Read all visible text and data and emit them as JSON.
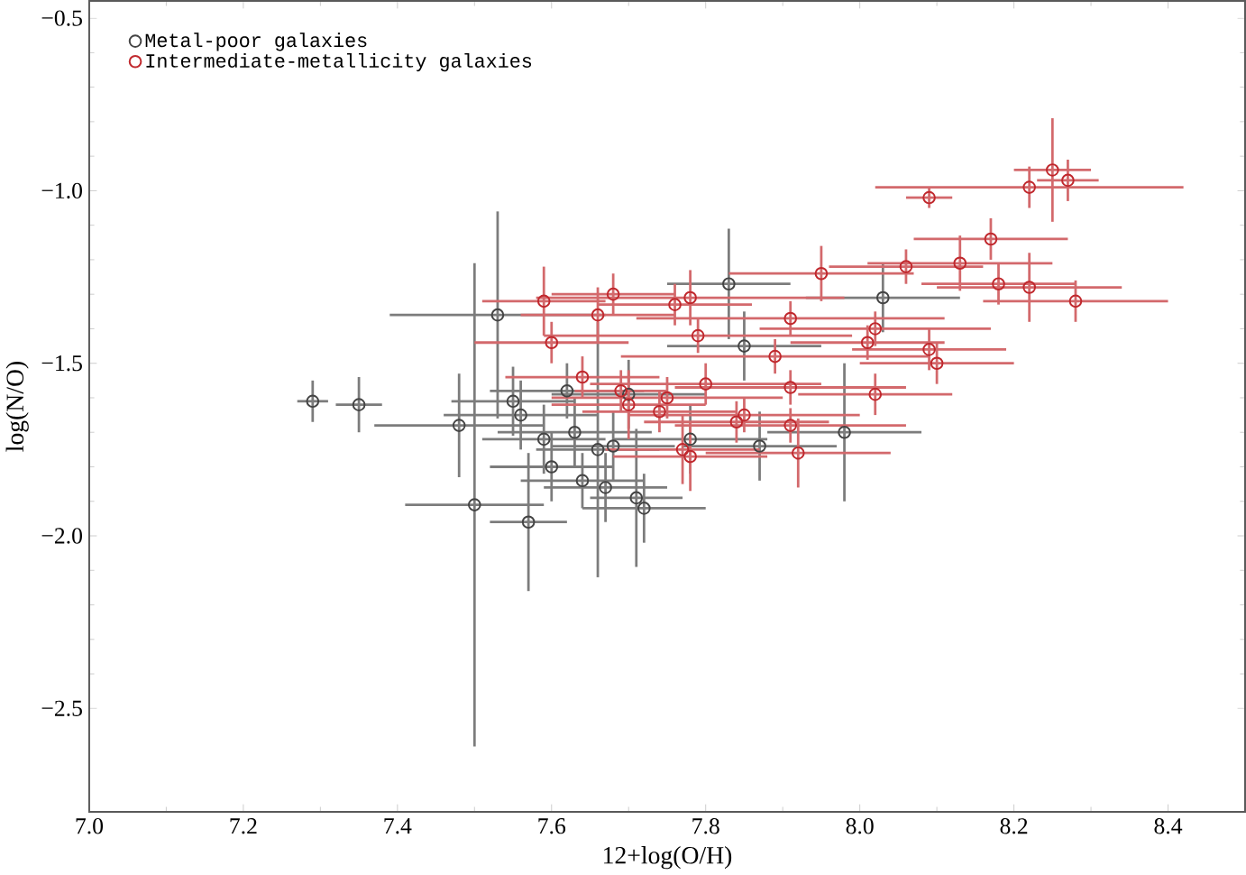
{
  "chart_data": {
    "type": "scatter",
    "xlabel": "12+log(O/H)",
    "ylabel": "log(N/O)",
    "xlim": [
      7.0,
      8.5
    ],
    "ylim": [
      -2.8,
      -0.45
    ],
    "xticks": [
      {
        "value": 7.0,
        "label": "7.0"
      },
      7.2,
      7.4,
      7.6,
      7.8,
      {
        "value": 8.0,
        "label": "8.0"
      },
      8.2,
      8.4
    ],
    "yticks": [
      {
        "value": -2.5,
        "label": "−2.5"
      },
      {
        "value": -2.0,
        "label": "−2.0"
      },
      {
        "value": -1.5,
        "label": "−1.5"
      },
      {
        "value": -1.0,
        "label": "−1.0"
      },
      {
        "value": -0.5,
        "label": "−0.5"
      }
    ],
    "marker": "circle",
    "legend": "top left",
    "grid": false,
    "series": [
      {
        "name": "Metal-poor galaxies",
        "color": "#444444",
        "x": [
          7.29,
          7.35,
          7.48,
          7.5,
          7.53,
          7.55,
          7.57,
          7.59,
          7.6,
          7.64,
          7.66,
          7.67,
          7.71,
          7.68,
          7.56,
          7.62,
          7.63,
          7.83,
          8.03,
          7.98,
          7.87,
          7.78,
          7.72,
          7.85,
          7.7
        ],
        "values": [
          -1.61,
          -1.62,
          -1.68,
          -1.91,
          -1.36,
          -1.61,
          -1.96,
          -1.72,
          -1.8,
          -1.84,
          -1.75,
          -1.86,
          -1.89,
          -1.74,
          -1.65,
          -1.58,
          -1.7,
          -1.27,
          -1.31,
          -1.7,
          -1.74,
          -1.72,
          -1.92,
          -1.45,
          -1.59
        ],
        "errors": [
          0.06,
          0.08,
          0.15,
          0.7,
          0.3,
          0.1,
          0.2,
          0.1,
          0.1,
          0.08,
          0.37,
          0.1,
          0.2,
          0.1,
          0.1,
          0.08,
          0.1,
          0.16,
          0.1,
          0.2,
          0.1,
          0.1,
          0.1,
          0.1,
          0.1
        ],
        "xerrors": [
          0.02,
          0.03,
          0.11,
          0.09,
          0.14,
          0.08,
          0.05,
          0.08,
          0.08,
          0.08,
          0.08,
          0.08,
          0.06,
          0.08,
          0.1,
          0.1,
          0.1,
          0.08,
          0.1,
          0.1,
          0.1,
          0.1,
          0.08,
          0.1,
          0.1
        ]
      },
      {
        "name": "Intermediate-metallicity galaxies",
        "color": "#c0282d",
        "x": [
          8.09,
          8.17,
          8.13,
          8.06,
          7.95,
          8.18,
          7.78,
          7.91,
          8.02,
          8.09,
          8.1,
          7.89,
          7.79,
          7.75,
          7.85,
          7.91,
          7.92,
          8.02,
          7.78,
          7.8,
          7.69,
          7.91,
          8.01,
          8.25,
          8.22,
          8.27,
          8.22,
          8.28,
          7.59,
          7.66,
          7.6,
          7.7,
          7.74,
          7.77,
          7.64,
          7.76,
          7.84,
          7.68
        ],
        "values": [
          -1.02,
          -1.14,
          -1.21,
          -1.22,
          -1.24,
          -1.27,
          -1.31,
          -1.37,
          -1.4,
          -1.46,
          -1.5,
          -1.48,
          -1.42,
          -1.6,
          -1.65,
          -1.68,
          -1.76,
          -1.59,
          -1.77,
          -1.56,
          -1.58,
          -1.57,
          -1.44,
          -0.94,
          -0.99,
          -0.97,
          -1.28,
          -1.32,
          -1.32,
          -1.36,
          -1.44,
          -1.62,
          -1.64,
          -1.75,
          -1.54,
          -1.33,
          -1.67,
          -1.3
        ],
        "errors": [
          0.03,
          0.06,
          0.08,
          0.05,
          0.08,
          0.06,
          0.08,
          0.05,
          0.05,
          0.06,
          0.06,
          0.05,
          0.05,
          0.06,
          0.05,
          0.05,
          0.1,
          0.06,
          0.1,
          0.06,
          0.06,
          0.05,
          0.05,
          0.15,
          0.06,
          0.06,
          0.1,
          0.06,
          0.1,
          0.08,
          0.06,
          0.1,
          0.06,
          0.1,
          0.06,
          0.06,
          0.06,
          0.06
        ],
        "xerrors": [
          0.03,
          0.1,
          0.12,
          0.1,
          0.12,
          0.1,
          0.2,
          0.2,
          0.15,
          0.1,
          0.1,
          0.2,
          0.2,
          0.15,
          0.15,
          0.15,
          0.12,
          0.1,
          0.1,
          0.15,
          0.06,
          0.15,
          0.1,
          0.05,
          0.2,
          0.04,
          0.12,
          0.12,
          0.08,
          0.1,
          0.1,
          0.1,
          0.1,
          0.1,
          0.1,
          0.1,
          0.12,
          0.08
        ]
      }
    ]
  }
}
